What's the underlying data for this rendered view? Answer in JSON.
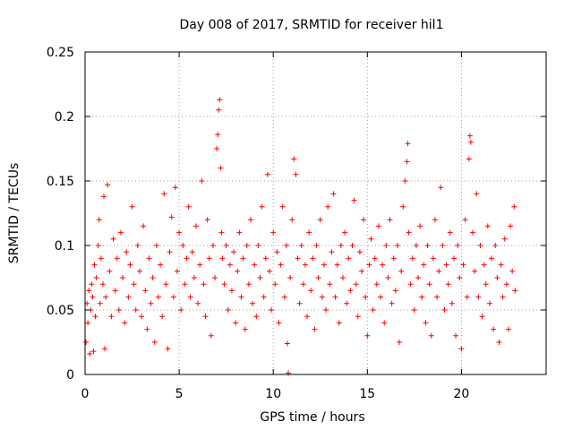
{
  "chart_data": {
    "type": "scatter",
    "title": "Day 008 of 2017, SRMTID for receiver hil1",
    "xlabel": "GPS time / hours",
    "ylabel": "SRMTID / TECUs",
    "xlim": [
      0,
      24.5
    ],
    "ylim": [
      0,
      0.25
    ],
    "xticks": [
      0,
      5,
      10,
      15,
      20
    ],
    "xtick_labels": [
      "0",
      "5",
      "10",
      "15",
      "20"
    ],
    "yticks": [
      0,
      0.05,
      0.1,
      0.15,
      0.2,
      0.25
    ],
    "ytick_labels": [
      "0",
      "0.05",
      "0.1",
      "0.15",
      "0.2",
      "0.25"
    ],
    "grid": true,
    "legend": "none",
    "marker": "+",
    "color": "#ff0000",
    "series": [
      {
        "values": [
          [
            0.05,
            0.025
          ],
          [
            0.1,
            0.055
          ],
          [
            0.15,
            0.04
          ],
          [
            0.2,
            0.065
          ],
          [
            0.25,
            0.016
          ],
          [
            0.3,
            0.05
          ],
          [
            0.35,
            0.07
          ],
          [
            0.4,
            0.06
          ],
          [
            0.45,
            0.018
          ],
          [
            0.5,
            0.085
          ],
          [
            0.55,
            0.045
          ],
          [
            0.6,
            0.075
          ],
          [
            0.7,
            0.1
          ],
          [
            0.75,
            0.12
          ],
          [
            0.8,
            0.055
          ],
          [
            0.85,
            0.09
          ],
          [
            0.95,
            0.07
          ],
          [
            1.0,
            0.138
          ],
          [
            1.05,
            0.02
          ],
          [
            1.1,
            0.06
          ],
          [
            1.2,
            0.147
          ],
          [
            1.3,
            0.08
          ],
          [
            1.4,
            0.045
          ],
          [
            1.5,
            0.105
          ],
          [
            1.6,
            0.065
          ],
          [
            1.7,
            0.09
          ],
          [
            1.8,
            0.05
          ],
          [
            1.9,
            0.11
          ],
          [
            2.0,
            0.075
          ],
          [
            2.1,
            0.04
          ],
          [
            2.2,
            0.095
          ],
          [
            2.3,
            0.06
          ],
          [
            2.4,
            0.085
          ],
          [
            2.5,
            0.13
          ],
          [
            2.6,
            0.07
          ],
          [
            2.7,
            0.05
          ],
          [
            2.8,
            0.1
          ],
          [
            2.9,
            0.08
          ],
          [
            3.0,
            0.045
          ],
          [
            3.1,
            0.115
          ],
          [
            3.2,
            0.065
          ],
          [
            3.3,
            0.035
          ],
          [
            3.4,
            0.09
          ],
          [
            3.5,
            0.055
          ],
          [
            3.6,
            0.075
          ],
          [
            3.7,
            0.025
          ],
          [
            3.8,
            0.1
          ],
          [
            3.9,
            0.06
          ],
          [
            4.0,
            0.085
          ],
          [
            4.1,
            0.045
          ],
          [
            4.2,
            0.14
          ],
          [
            4.3,
            0.07
          ],
          [
            4.4,
            0.02
          ],
          [
            4.5,
            0.095
          ],
          [
            4.6,
            0.122
          ],
          [
            4.7,
            0.06
          ],
          [
            4.8,
            0.145
          ],
          [
            4.9,
            0.08
          ],
          [
            5.0,
            0.11
          ],
          [
            5.1,
            0.05
          ],
          [
            5.2,
            0.1
          ],
          [
            5.3,
            0.07
          ],
          [
            5.4,
            0.09
          ],
          [
            5.5,
            0.13
          ],
          [
            5.6,
            0.06
          ],
          [
            5.7,
            0.095
          ],
          [
            5.8,
            0.075
          ],
          [
            5.9,
            0.115
          ],
          [
            6.0,
            0.055
          ],
          [
            6.1,
            0.085
          ],
          [
            6.2,
            0.15
          ],
          [
            6.3,
            0.07
          ],
          [
            6.4,
            0.045
          ],
          [
            6.5,
            0.12
          ],
          [
            6.6,
            0.09
          ],
          [
            6.7,
            0.03
          ],
          [
            6.8,
            0.1
          ],
          [
            6.9,
            0.075
          ],
          [
            7.0,
            0.175
          ],
          [
            7.05,
            0.186
          ],
          [
            7.1,
            0.205
          ],
          [
            7.15,
            0.213
          ],
          [
            7.2,
            0.16
          ],
          [
            7.25,
            0.11
          ],
          [
            7.3,
            0.09
          ],
          [
            7.4,
            0.07
          ],
          [
            7.5,
            0.1
          ],
          [
            7.6,
            0.05
          ],
          [
            7.7,
            0.085
          ],
          [
            7.8,
            0.065
          ],
          [
            7.9,
            0.095
          ],
          [
            8.0,
            0.04
          ],
          [
            8.1,
            0.08
          ],
          [
            8.2,
            0.11
          ],
          [
            8.3,
            0.06
          ],
          [
            8.4,
            0.09
          ],
          [
            8.5,
            0.035
          ],
          [
            8.6,
            0.1
          ],
          [
            8.7,
            0.07
          ],
          [
            8.8,
            0.12
          ],
          [
            8.9,
            0.055
          ],
          [
            9.0,
            0.085
          ],
          [
            9.1,
            0.045
          ],
          [
            9.2,
            0.1
          ],
          [
            9.3,
            0.075
          ],
          [
            9.4,
            0.13
          ],
          [
            9.5,
            0.06
          ],
          [
            9.6,
            0.09
          ],
          [
            9.7,
            0.155
          ],
          [
            9.8,
            0.08
          ],
          [
            9.9,
            0.05
          ],
          [
            10.0,
            0.11
          ],
          [
            10.1,
            0.07
          ],
          [
            10.2,
            0.095
          ],
          [
            10.3,
            0.04
          ],
          [
            10.4,
            0.085
          ],
          [
            10.5,
            0.13
          ],
          [
            10.6,
            0.06
          ],
          [
            10.7,
            0.1
          ],
          [
            10.75,
            0.024
          ],
          [
            10.8,
            0.001
          ],
          [
            10.9,
            0.075
          ],
          [
            11.0,
            0.12
          ],
          [
            11.1,
            0.167
          ],
          [
            11.2,
            0.155
          ],
          [
            11.3,
            0.09
          ],
          [
            11.4,
            0.055
          ],
          [
            11.5,
            0.1
          ],
          [
            11.6,
            0.07
          ],
          [
            11.7,
            0.085
          ],
          [
            11.8,
            0.045
          ],
          [
            11.9,
            0.11
          ],
          [
            12.0,
            0.065
          ],
          [
            12.1,
            0.09
          ],
          [
            12.2,
            0.035
          ],
          [
            12.3,
            0.1
          ],
          [
            12.4,
            0.075
          ],
          [
            12.5,
            0.12
          ],
          [
            12.6,
            0.06
          ],
          [
            12.7,
            0.085
          ],
          [
            12.8,
            0.05
          ],
          [
            12.9,
            0.13
          ],
          [
            13.0,
            0.07
          ],
          [
            13.1,
            0.095
          ],
          [
            13.2,
            0.14
          ],
          [
            13.3,
            0.06
          ],
          [
            13.4,
            0.085
          ],
          [
            13.5,
            0.04
          ],
          [
            13.6,
            0.1
          ],
          [
            13.7,
            0.075
          ],
          [
            13.8,
            0.11
          ],
          [
            13.9,
            0.055
          ],
          [
            14.0,
            0.09
          ],
          [
            14.1,
            0.065
          ],
          [
            14.2,
            0.1
          ],
          [
            14.3,
            0.135
          ],
          [
            14.4,
            0.07
          ],
          [
            14.5,
            0.045
          ],
          [
            14.6,
            0.095
          ],
          [
            14.7,
            0.08
          ],
          [
            14.8,
            0.12
          ],
          [
            14.9,
            0.06
          ],
          [
            15.0,
            0.03
          ],
          [
            15.1,
            0.085
          ],
          [
            15.2,
            0.105
          ],
          [
            15.3,
            0.05
          ],
          [
            15.4,
            0.09
          ],
          [
            15.5,
            0.07
          ],
          [
            15.6,
            0.115
          ],
          [
            15.7,
            0.06
          ],
          [
            15.8,
            0.085
          ],
          [
            15.9,
            0.04
          ],
          [
            16.0,
            0.1
          ],
          [
            16.1,
            0.075
          ],
          [
            16.2,
            0.12
          ],
          [
            16.3,
            0.055
          ],
          [
            16.4,
            0.09
          ],
          [
            16.5,
            0.065
          ],
          [
            16.6,
            0.1
          ],
          [
            16.7,
            0.025
          ],
          [
            16.8,
            0.08
          ],
          [
            16.9,
            0.13
          ],
          [
            17.0,
            0.15
          ],
          [
            17.1,
            0.165
          ],
          [
            17.15,
            0.179
          ],
          [
            17.2,
            0.11
          ],
          [
            17.3,
            0.07
          ],
          [
            17.4,
            0.09
          ],
          [
            17.5,
            0.05
          ],
          [
            17.6,
            0.1
          ],
          [
            17.7,
            0.075
          ],
          [
            17.8,
            0.115
          ],
          [
            17.9,
            0.06
          ],
          [
            18.0,
            0.085
          ],
          [
            18.1,
            0.04
          ],
          [
            18.2,
            0.1
          ],
          [
            18.3,
            0.07
          ],
          [
            18.4,
            0.03
          ],
          [
            18.5,
            0.09
          ],
          [
            18.6,
            0.12
          ],
          [
            18.7,
            0.06
          ],
          [
            18.8,
            0.08
          ],
          [
            18.9,
            0.145
          ],
          [
            19.0,
            0.1
          ],
          [
            19.1,
            0.05
          ],
          [
            19.2,
            0.085
          ],
          [
            19.3,
            0.07
          ],
          [
            19.4,
            0.11
          ],
          [
            19.5,
            0.055
          ],
          [
            19.6,
            0.09
          ],
          [
            19.7,
            0.03
          ],
          [
            19.8,
            0.1
          ],
          [
            19.9,
            0.075
          ],
          [
            20.0,
            0.02
          ],
          [
            20.1,
            0.085
          ],
          [
            20.2,
            0.12
          ],
          [
            20.3,
            0.06
          ],
          [
            20.4,
            0.167
          ],
          [
            20.45,
            0.185
          ],
          [
            20.5,
            0.18
          ],
          [
            20.6,
            0.11
          ],
          [
            20.7,
            0.08
          ],
          [
            20.8,
            0.14
          ],
          [
            20.9,
            0.06
          ],
          [
            21.0,
            0.1
          ],
          [
            21.1,
            0.045
          ],
          [
            21.2,
            0.085
          ],
          [
            21.3,
            0.07
          ],
          [
            21.4,
            0.115
          ],
          [
            21.5,
            0.055
          ],
          [
            21.6,
            0.09
          ],
          [
            21.7,
            0.035
          ],
          [
            21.8,
            0.1
          ],
          [
            21.9,
            0.075
          ],
          [
            22.0,
            0.025
          ],
          [
            22.1,
            0.085
          ],
          [
            22.2,
            0.06
          ],
          [
            22.3,
            0.105
          ],
          [
            22.4,
            0.07
          ],
          [
            22.5,
            0.035
          ],
          [
            22.6,
            0.115
          ],
          [
            22.7,
            0.08
          ],
          [
            22.8,
            0.13
          ],
          [
            22.85,
            0.065
          ]
        ]
      }
    ]
  }
}
